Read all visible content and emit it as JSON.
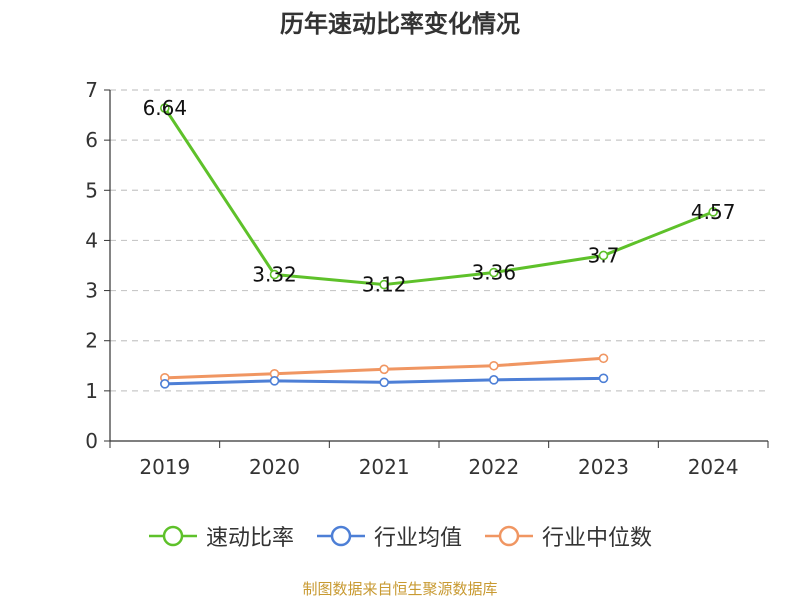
{
  "chart_data": {
    "type": "line",
    "title": "历年速动比率变化情况",
    "categories": [
      "2019",
      "2020",
      "2021",
      "2022",
      "2023",
      "2024"
    ],
    "ylim": [
      0,
      7
    ],
    "yticks": [
      0,
      1,
      2,
      3,
      4,
      5,
      6,
      7
    ],
    "grid": "horizontal-dashed",
    "legend_position": "bottom",
    "series": [
      {
        "name": "速动比率",
        "color": "#5ec12a",
        "values": [
          6.64,
          3.32,
          3.12,
          3.36,
          3.7,
          4.57
        ],
        "show_labels": true
      },
      {
        "name": "行业均值",
        "color": "#4d7fd6",
        "values": [
          1.14,
          1.2,
          1.17,
          1.22,
          1.25,
          null
        ],
        "show_labels": false
      },
      {
        "name": "行业中位数",
        "color": "#f09662",
        "values": [
          1.26,
          1.34,
          1.43,
          1.5,
          1.65,
          null
        ],
        "show_labels": false
      }
    ]
  },
  "footer": "制图数据来自恒生聚源数据库"
}
